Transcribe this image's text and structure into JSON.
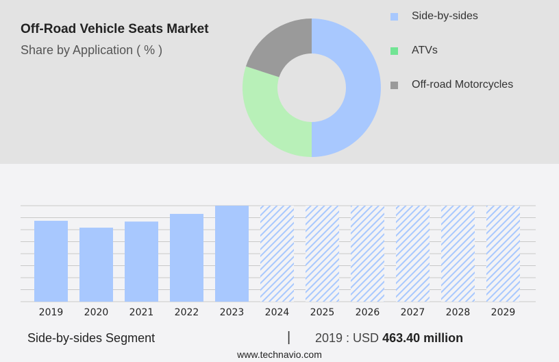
{
  "title": "Off-Road Vehicle Seats Market",
  "subtitle": "Share by Application ( % )",
  "chart_data": [
    {
      "type": "pie",
      "donut": true,
      "title": "Off-Road Vehicle Seats Market",
      "subtitle": "Share by Application ( % )",
      "legend_placement": "right",
      "slices": [
        {
          "name": "Side-by-sides",
          "value": 50,
          "color": "#a8c8fe"
        },
        {
          "name": "ATVs",
          "value": 30,
          "color": "#b8f0b8",
          "legend_color": "#72e494"
        },
        {
          "name": "Off-road Motorcycles",
          "value": 20,
          "color": "#9a9a9a"
        }
      ]
    },
    {
      "type": "bar",
      "categories": [
        "2019",
        "2020",
        "2021",
        "2022",
        "2023",
        "2024",
        "2025",
        "2026",
        "2027",
        "2028",
        "2029"
      ],
      "values": [
        463.4,
        424,
        459,
        503,
        550,
        null,
        null,
        null,
        null,
        null,
        null
      ],
      "forecast": [
        "2024",
        "2025",
        "2026",
        "2027",
        "2028",
        "2029"
      ],
      "unit": "USD million",
      "grid": true,
      "bar_color": "#a8c8fe",
      "ylim": [
        0,
        550
      ]
    }
  ],
  "footer": {
    "segment": "Side-by-sides Segment",
    "separator": "|",
    "year_label": "2019 : USD",
    "value": "463.40 million",
    "site": "www.technavio.com"
  }
}
